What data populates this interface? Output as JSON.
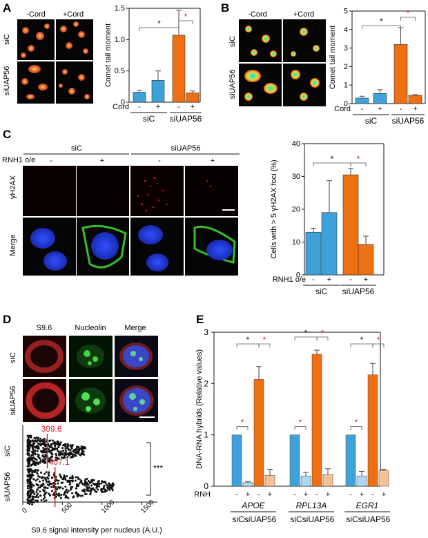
{
  "panelA": {
    "label": "A",
    "cols": [
      "-Cord",
      "+Cord"
    ],
    "rows": [
      "siC",
      "siUAP56"
    ],
    "chart_data": {
      "type": "bar",
      "ylabel": "Comet tail moment",
      "ylim": [
        0,
        1.5
      ],
      "yticks": [
        "0",
        "0.5",
        "1.0",
        "1.5"
      ],
      "cond_label": "Cord",
      "cond_marks": [
        "-",
        "+",
        "-",
        "+"
      ],
      "groups": [
        "siC",
        "siUAP56"
      ],
      "values": [
        0.16,
        0.35,
        1.07,
        0.15
      ],
      "errors": [
        0.03,
        0.15,
        0.4,
        0.03
      ],
      "colors": [
        "#3fa1d9",
        "#3fa1d9",
        "#ee7012",
        "#ee7012"
      ],
      "sig": [
        {
          "text": "*",
          "color": "#111111"
        },
        {
          "text": "*",
          "color": "#d6202a"
        }
      ]
    }
  },
  "panelB": {
    "label": "B",
    "cols": [
      "-Cord",
      "+Cord"
    ],
    "rows": [
      "siC",
      "siUAP56"
    ],
    "chart_data": {
      "type": "bar",
      "ylabel": "Comet tail moment",
      "ylim": [
        0,
        5
      ],
      "yticks": [
        "0",
        "1",
        "2",
        "3",
        "4",
        "5"
      ],
      "cond_label": "Cord",
      "cond_marks": [
        "-",
        "+",
        "-",
        "+"
      ],
      "groups": [
        "siC",
        "siUAP56"
      ],
      "values": [
        0.3,
        0.55,
        3.2,
        0.45
      ],
      "errors": [
        0.1,
        0.2,
        0.9,
        0.03
      ],
      "colors": [
        "#3fa1d9",
        "#3fa1d9",
        "#ee7012",
        "#ee7012"
      ],
      "sig": [
        {
          "text": "*",
          "color": "#111111"
        },
        {
          "text": "*",
          "color": "#d6202a"
        }
      ]
    }
  },
  "panelC": {
    "label": "C",
    "groups": [
      "siC",
      "siUAP56"
    ],
    "rnh_label": "RNH1 o/e",
    "rnh_marks": [
      "-",
      "+",
      "-",
      "+"
    ],
    "rows": [
      "γH2AX",
      "Merge"
    ],
    "chart_data": {
      "type": "bar",
      "ylabel": "Cells with > 5 γH2AX foci (%)",
      "ylim": [
        0,
        40
      ],
      "yticks": [
        "0",
        "10",
        "20",
        "30",
        "40"
      ],
      "cond_label": "RNH1 o/e",
      "cond_marks": [
        "-",
        "+",
        "-",
        "+"
      ],
      "groups": [
        "siC",
        "siUAP56"
      ],
      "values": [
        13,
        19,
        30.5,
        9.3
      ],
      "errors": [
        1.2,
        9.7,
        2.0,
        2.5
      ],
      "colors": [
        "#3fa1d9",
        "#3fa1d9",
        "#ee7012",
        "#ee7012"
      ],
      "sig": [
        {
          "text": "*",
          "color": "#111111"
        },
        {
          "text": "*",
          "color": "#d6202a"
        }
      ]
    }
  },
  "panelD": {
    "label": "D",
    "cols": [
      "S9.6",
      "Nucleolin",
      "Merge"
    ],
    "rows": [
      "siC",
      "siUAP56"
    ],
    "chart_data": {
      "type": "scatter",
      "xlabel": "S9.6 signal intensity per nucleus (A.U.)",
      "xlim": [
        0,
        1700
      ],
      "xticks": [
        "0",
        "500",
        "1000",
        "1500"
      ],
      "categories": [
        "siC",
        "siUAP56"
      ],
      "medians": [
        309.6,
        407.1
      ],
      "median_labels": [
        "309.6",
        "407.1"
      ],
      "sig": "***"
    }
  },
  "panelE": {
    "label": "E",
    "genes": [
      "APOE",
      "RPL13A",
      "EGR1"
    ],
    "chart_data": {
      "type": "bar",
      "ylabel": "DNA-RNA hybrids (Relative values)",
      "ylim": [
        0,
        3
      ],
      "yticks": [
        "0",
        "1",
        "2",
        "3"
      ],
      "cond_label": "RNH",
      "cond_marks": [
        "-",
        "+",
        "-",
        "+"
      ],
      "subgroups": [
        "siC",
        "siUAP56"
      ],
      "series": [
        {
          "values": [
            1.0,
            0.07,
            2.08,
            0.21
          ],
          "errors": [
            0,
            0.02,
            0.25,
            0.12
          ]
        },
        {
          "values": [
            1.0,
            0.2,
            2.57,
            0.23
          ],
          "errors": [
            0,
            0.07,
            0.08,
            0.11
          ]
        },
        {
          "values": [
            1.0,
            0.2,
            2.17,
            0.3
          ],
          "errors": [
            0,
            0.09,
            0.22,
            0.03
          ]
        }
      ],
      "colors": [
        "#3fa1d9",
        "#a9d8f2",
        "#ee7012",
        "#f8c196"
      ],
      "sig": [
        {
          "text": "*",
          "color": "#d6202a"
        },
        {
          "text": "*",
          "color": "#111111"
        },
        {
          "text": "*",
          "color": "#d6202a"
        }
      ]
    }
  }
}
